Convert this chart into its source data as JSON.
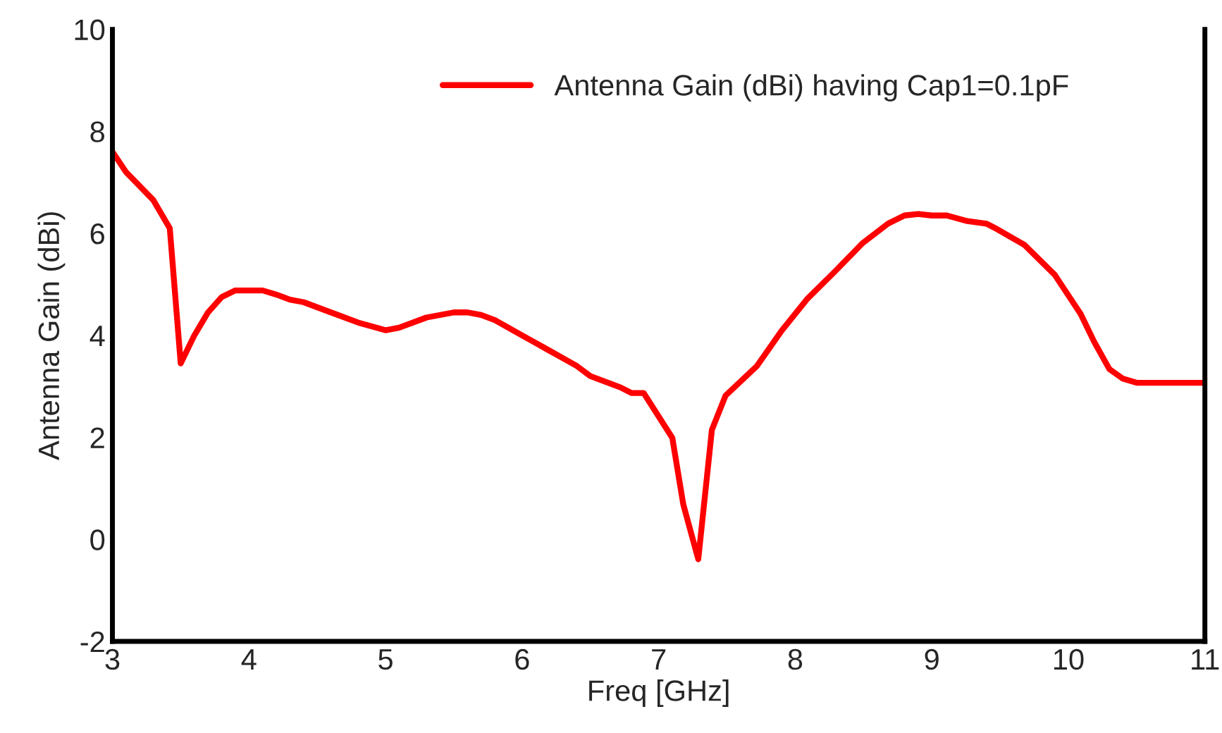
{
  "chart_data": {
    "type": "line",
    "xlabel": "Freq [GHz]",
    "ylabel": "Antenna Gain (dBi)",
    "series": [
      {
        "name": "Antenna Gain (dBi) having Cap1=0.1pF",
        "color": "#ff0000",
        "x": [
          3,
          3.1,
          3.3,
          3.42,
          3.5,
          3.6,
          3.7,
          3.8,
          3.9,
          4.1,
          4.2,
          4.3,
          4.4,
          4.6,
          4.8,
          5.0,
          5.1,
          5.3,
          5.5,
          5.6,
          5.7,
          5.8,
          6.0,
          6.2,
          6.4,
          6.5,
          6.72,
          6.8,
          6.89,
          7.1,
          7.18,
          7.29,
          7.39,
          7.49,
          7.72,
          7.9,
          8.09,
          8.29,
          8.49,
          8.68,
          8.8,
          8.9,
          9.0,
          9.11,
          9.26,
          9.4,
          9.48,
          9.68,
          9.9,
          10.09,
          10.19,
          10.3,
          10.4,
          10.5,
          11
        ],
        "values": [
          7.6,
          7.2,
          6.65,
          6.1,
          3.45,
          4.0,
          4.45,
          4.75,
          4.88,
          4.88,
          4.8,
          4.7,
          4.65,
          4.45,
          4.25,
          4.1,
          4.15,
          4.35,
          4.45,
          4.45,
          4.4,
          4.3,
          4.0,
          3.7,
          3.4,
          3.2,
          2.98,
          2.87,
          2.87,
          1.99,
          0.69,
          -0.39,
          2.15,
          2.82,
          3.4,
          4.09,
          4.72,
          5.25,
          5.8,
          6.19,
          6.35,
          6.38,
          6.35,
          6.35,
          6.24,
          6.19,
          6.08,
          5.77,
          5.19,
          4.42,
          3.87,
          3.34,
          3.15,
          3.07,
          3.07
        ]
      }
    ],
    "xlim": [
      3,
      11
    ],
    "xticks": [
      3,
      4,
      5,
      6,
      7,
      8,
      9,
      10,
      11
    ],
    "ylim": [
      -2,
      10
    ],
    "yticks": [
      -2,
      0,
      2,
      4,
      6,
      8,
      10
    ],
    "grid": false,
    "legend": "top right",
    "marker": "none",
    "line_style": "solid"
  }
}
